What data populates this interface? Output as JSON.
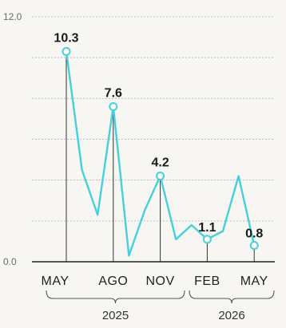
{
  "chart_data": {
    "type": "line",
    "title": "",
    "xlabel": "",
    "ylabel": "",
    "ylim": [
      0,
      12
    ],
    "y_ticks": [
      "0.0",
      "12.0"
    ],
    "grid": true,
    "color": "#45d0db",
    "x_labels": [
      "MAY",
      "AGO",
      "NOV",
      "FEB",
      "MAY"
    ],
    "year_groups": [
      "2025",
      "2026"
    ],
    "series": [
      {
        "x": [
          "2025-05",
          "2025-06",
          "2025-07",
          "2025-08",
          "2025-09",
          "2025-10",
          "2025-11",
          "2025-12",
          "2026-01",
          "2026-02",
          "2026-03",
          "2026-04",
          "2026-05"
        ],
        "values": [
          10.3,
          4.5,
          2.3,
          7.6,
          0.3,
          2.5,
          4.2,
          1.1,
          1.8,
          1.1,
          1.5,
          4.2,
          0.8
        ]
      }
    ],
    "annotations": [
      {
        "x": "2025-05",
        "label": "10.3"
      },
      {
        "x": "2025-08",
        "label": "7.6"
      },
      {
        "x": "2025-11",
        "label": "4.2"
      },
      {
        "x": "2026-02",
        "label": "1.1"
      },
      {
        "x": "2026-05",
        "label": "0.8"
      }
    ]
  }
}
